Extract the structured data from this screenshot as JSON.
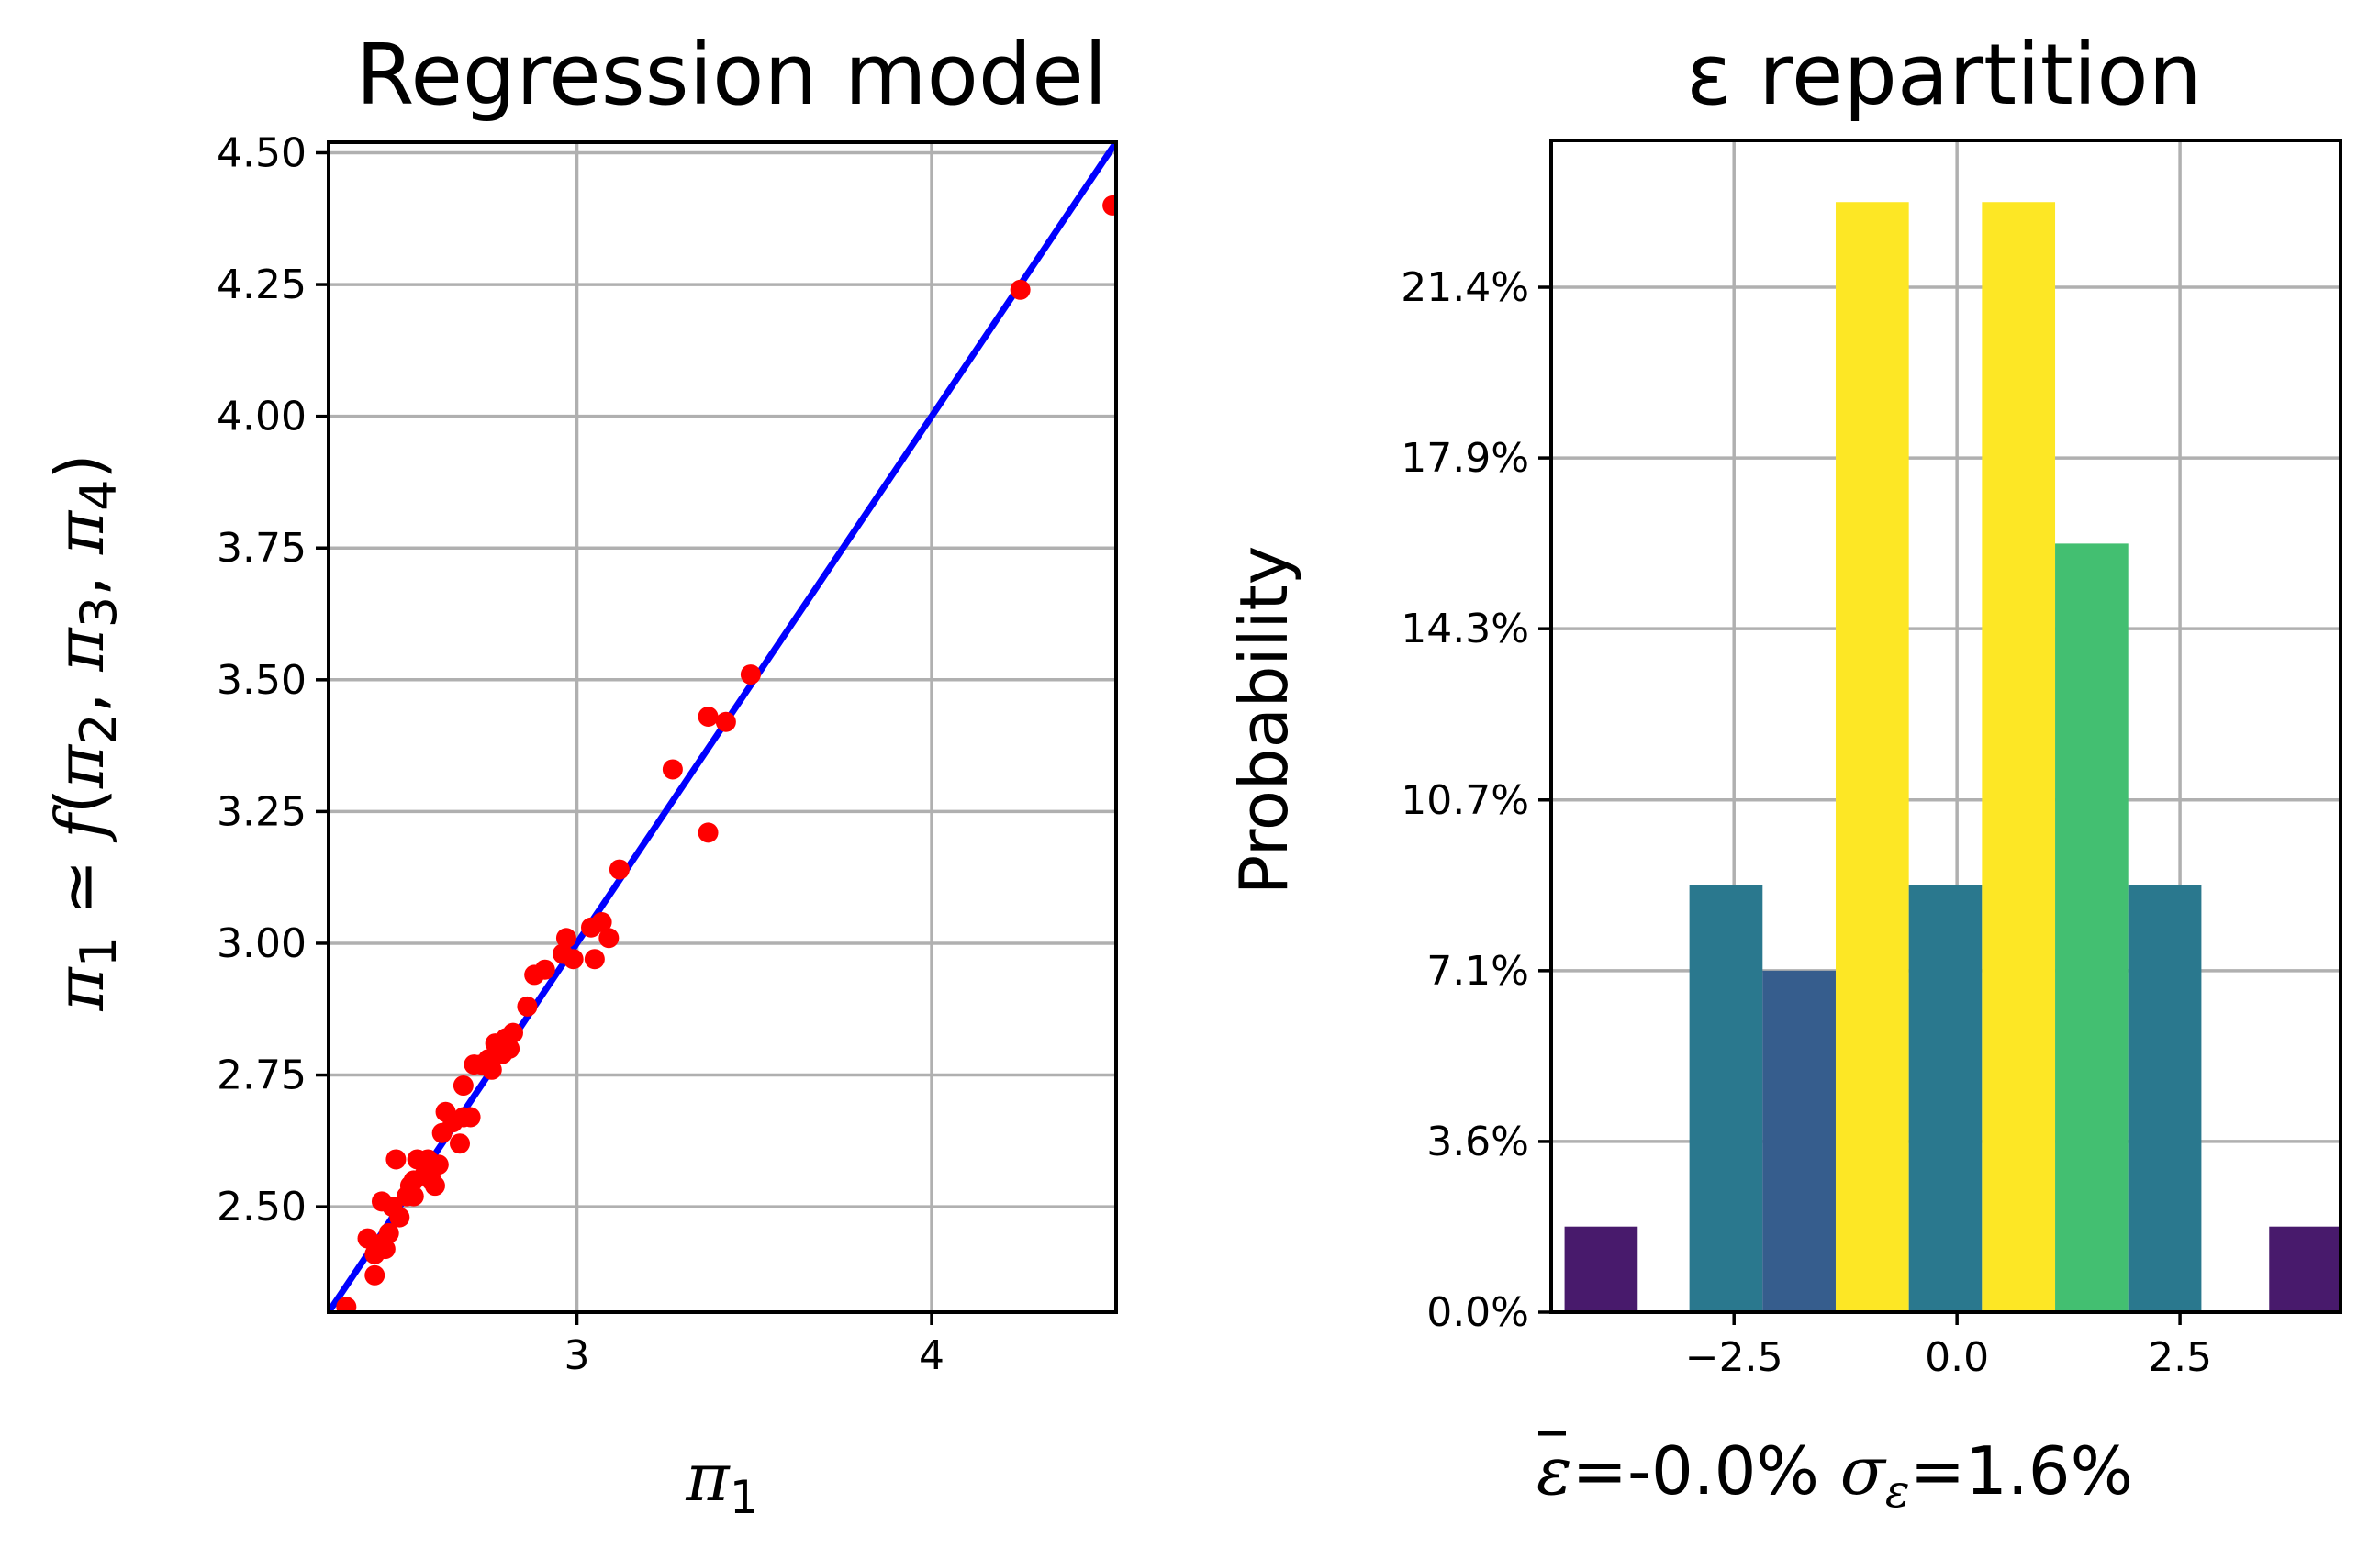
{
  "chart_data": [
    {
      "type": "scatter",
      "title": "Regression model",
      "xlabel": "π1",
      "ylabel": "π1 ≃ f(π2, π3, π4)",
      "xlim": [
        2.3,
        4.52
      ],
      "ylim": [
        2.3,
        4.52
      ],
      "x_ticks": [
        3,
        4
      ],
      "x_tick_labels": [
        "3",
        "4"
      ],
      "y_ticks": [
        2.5,
        2.75,
        3.0,
        3.25,
        3.5,
        3.75,
        4.0,
        4.25,
        4.5
      ],
      "y_tick_labels": [
        "2.50",
        "2.75",
        "3.00",
        "3.25",
        "3.50",
        "3.75",
        "4.00",
        "4.25",
        "4.50"
      ],
      "grid": true,
      "line": {
        "name": "y = x",
        "color": "#0000ff",
        "x": [
          2.3,
          4.52
        ],
        "y": [
          2.3,
          4.52
        ]
      },
      "points_color": "#ff0000",
      "points": [
        [
          2.35,
          2.31
        ],
        [
          2.41,
          2.44
        ],
        [
          2.43,
          2.37
        ],
        [
          2.43,
          2.41
        ],
        [
          2.45,
          2.43
        ],
        [
          2.45,
          2.51
        ],
        [
          2.46,
          2.42
        ],
        [
          2.47,
          2.45
        ],
        [
          2.48,
          2.5
        ],
        [
          2.49,
          2.59
        ],
        [
          2.5,
          2.48
        ],
        [
          2.52,
          2.52
        ],
        [
          2.53,
          2.54
        ],
        [
          2.54,
          2.55
        ],
        [
          2.54,
          2.52
        ],
        [
          2.55,
          2.59
        ],
        [
          2.57,
          2.56
        ],
        [
          2.58,
          2.59
        ],
        [
          2.59,
          2.55
        ],
        [
          2.6,
          2.54
        ],
        [
          2.61,
          2.58
        ],
        [
          2.62,
          2.64
        ],
        [
          2.63,
          2.68
        ],
        [
          2.65,
          2.66
        ],
        [
          2.67,
          2.62
        ],
        [
          2.68,
          2.67
        ],
        [
          2.68,
          2.73
        ],
        [
          2.7,
          2.67
        ],
        [
          2.71,
          2.77
        ],
        [
          2.73,
          2.77
        ],
        [
          2.75,
          2.78
        ],
        [
          2.76,
          2.76
        ],
        [
          2.77,
          2.81
        ],
        [
          2.78,
          2.8
        ],
        [
          2.79,
          2.79
        ],
        [
          2.8,
          2.82
        ],
        [
          2.81,
          2.8
        ],
        [
          2.82,
          2.83
        ],
        [
          2.86,
          2.88
        ],
        [
          2.88,
          2.94
        ],
        [
          2.91,
          2.95
        ],
        [
          2.96,
          2.98
        ],
        [
          2.97,
          3.01
        ],
        [
          2.99,
          2.97
        ],
        [
          3.04,
          3.03
        ],
        [
          3.05,
          2.97
        ],
        [
          3.07,
          3.04
        ],
        [
          3.09,
          3.01
        ],
        [
          3.12,
          3.14
        ],
        [
          3.27,
          3.33
        ],
        [
          3.37,
          3.21
        ],
        [
          3.37,
          3.43
        ],
        [
          3.42,
          3.42
        ],
        [
          3.49,
          3.51
        ],
        [
          4.25,
          4.24
        ],
        [
          4.51,
          4.4
        ]
      ]
    },
    {
      "type": "bar",
      "title": "ε repartition",
      "xlabel": "ε=-0.0% σε=1.6%",
      "xlabel_parts": {
        "eps_symbol": "ε",
        "mean_text": "=-0.0%",
        "sigma_symbol": "σ",
        "sigma_sub": "ε",
        "sigma_text": "=1.6%"
      },
      "ylabel": "Probability",
      "xlim": [
        -4.55,
        4.3
      ],
      "ylim": [
        0,
        24.5
      ],
      "x_ticks": [
        -2.5,
        0.0,
        2.5
      ],
      "x_tick_labels": [
        "−2.5",
        "0.0",
        "2.5"
      ],
      "y_ticks": [
        0,
        3.57,
        7.14,
        10.71,
        14.29,
        17.86,
        21.43
      ],
      "y_tick_labels": [
        "0.0%",
        "3.6%",
        "7.1%",
        "10.7%",
        "14.3%",
        "17.9%",
        "21.4%"
      ],
      "grid": true,
      "bars": [
        {
          "x_left": -4.4,
          "x_right": -3.58,
          "value": 1.79,
          "color": "#481a6c"
        },
        {
          "x_left": -3.0,
          "x_right": -2.18,
          "value": 8.93,
          "color": "#2a788e"
        },
        {
          "x_left": -2.18,
          "x_right": -1.36,
          "value": 7.14,
          "color": "#365d8d"
        },
        {
          "x_left": -1.36,
          "x_right": -0.54,
          "value": 23.21,
          "color": "#fde725"
        },
        {
          "x_left": -0.54,
          "x_right": 0.28,
          "value": 8.93,
          "color": "#2a788e"
        },
        {
          "x_left": 0.28,
          "x_right": 1.1,
          "value": 23.21,
          "color": "#fde725"
        },
        {
          "x_left": 1.1,
          "x_right": 1.92,
          "value": 16.07,
          "color": "#43bf71"
        },
        {
          "x_left": 1.92,
          "x_right": 2.74,
          "value": 8.93,
          "color": "#2a788e"
        },
        {
          "x_left": 3.5,
          "x_right": 4.32,
          "value": 1.79,
          "color": "#481a6c"
        }
      ]
    }
  ]
}
